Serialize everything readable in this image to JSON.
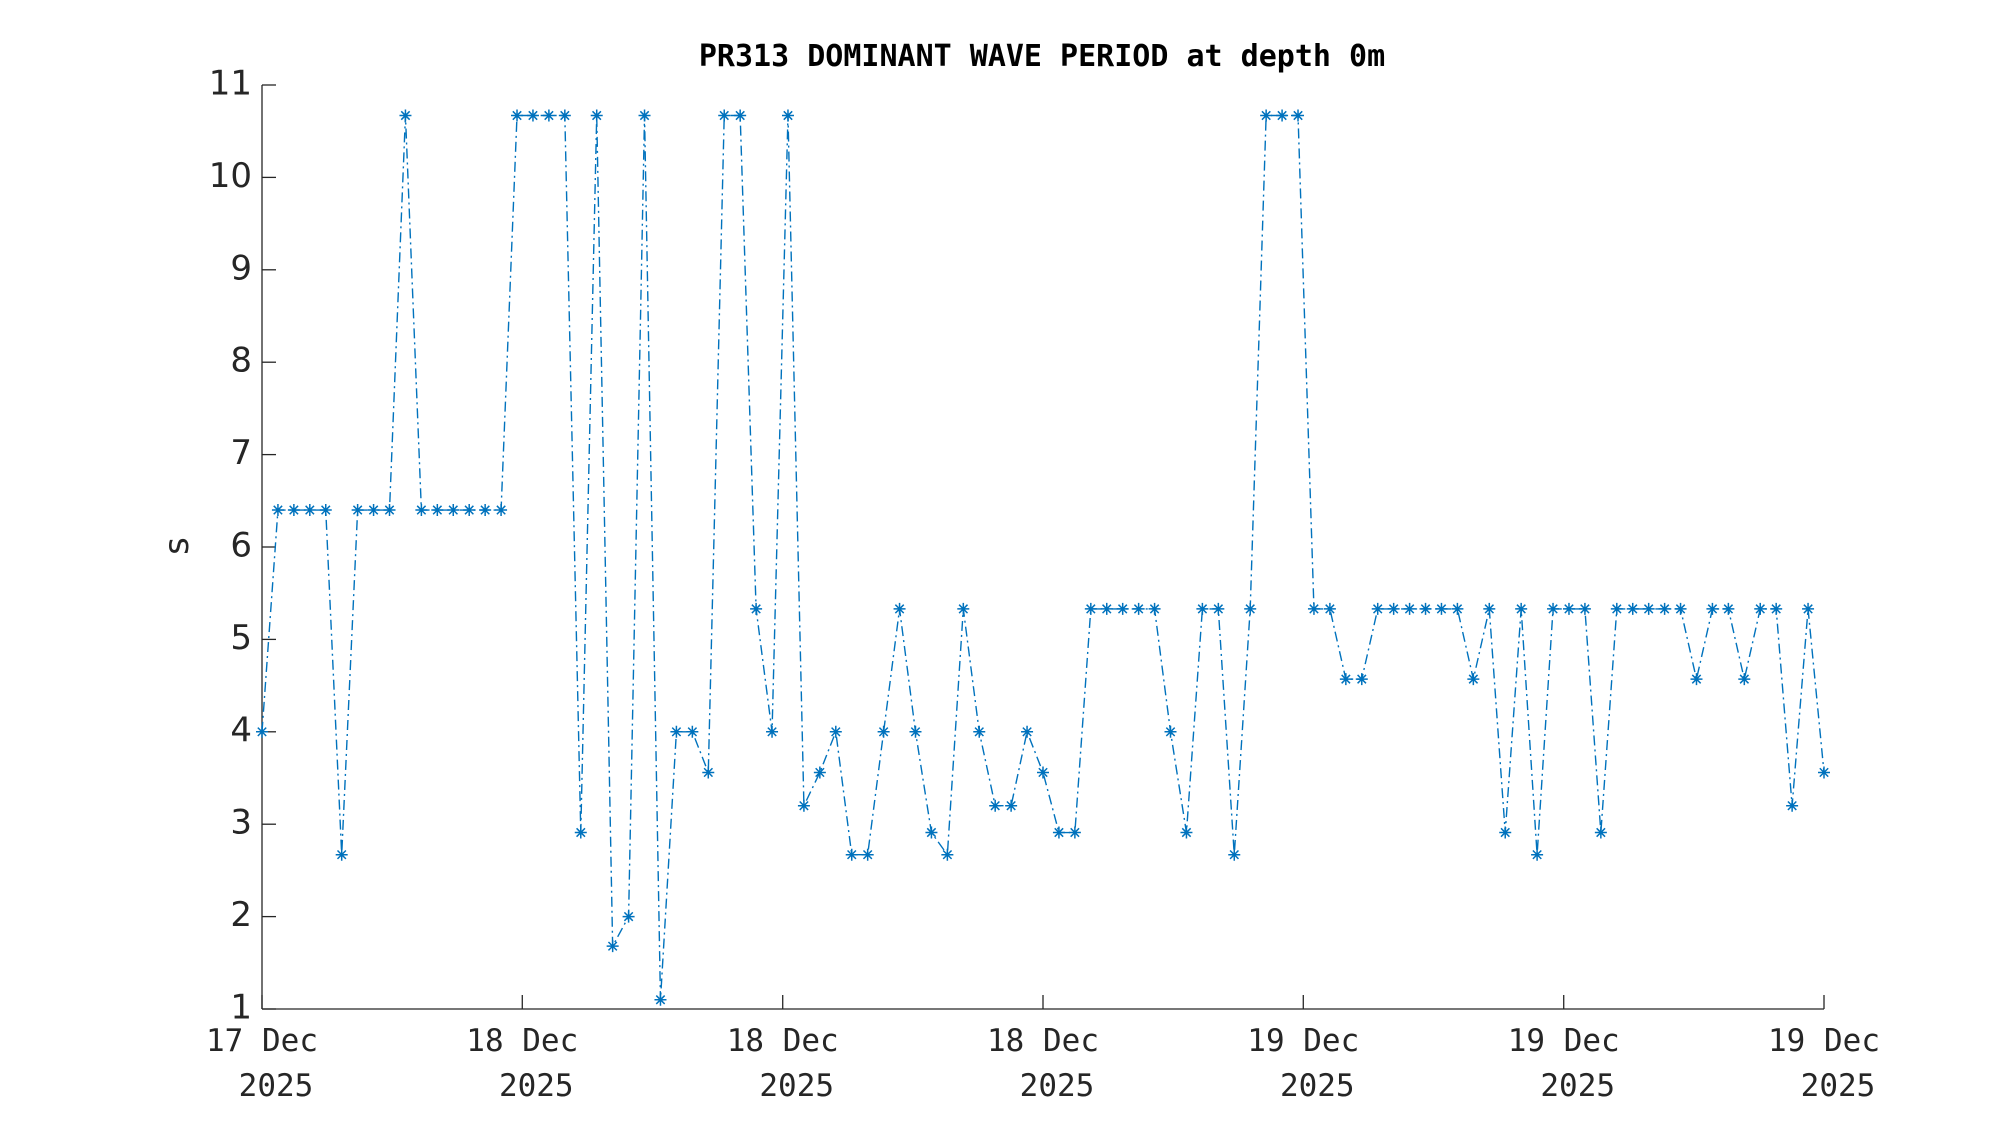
{
  "chart_data": {
    "type": "line",
    "title": "PR313 DOMINANT WAVE PERIOD at depth 0m",
    "ylabel": "s",
    "series": [
      {
        "color": "#0072bd",
        "values": [
          4,
          6.4,
          6.4,
          6.4,
          6.4,
          2.67,
          6.4,
          6.4,
          6.4,
          10.67,
          6.4,
          6.4,
          6.4,
          6.4,
          6.4,
          6.4,
          10.67,
          10.67,
          10.67,
          10.67,
          2.91,
          10.67,
          1.68,
          2,
          10.67,
          1.1,
          4,
          4,
          3.56,
          10.67,
          10.67,
          5.33,
          4,
          10.67,
          3.2,
          3.56,
          4,
          2.67,
          2.67,
          4,
          5.33,
          4,
          2.91,
          2.67,
          5.33,
          4,
          3.2,
          3.2,
          4,
          3.56,
          2.91,
          2.91,
          5.33,
          5.33,
          5.33,
          5.33,
          5.33,
          4,
          2.91,
          5.33,
          5.33,
          2.67,
          5.33,
          10.67,
          10.67,
          10.67,
          5.33,
          5.33,
          4.57,
          4.57,
          5.33,
          5.33,
          5.33,
          5.33,
          5.33,
          5.33,
          4.57,
          5.33,
          2.91,
          5.33,
          2.67,
          5.33,
          5.33,
          5.33,
          2.91,
          5.33,
          5.33,
          5.33,
          5.33,
          5.33,
          4.57,
          5.33,
          5.33,
          4.57,
          5.33,
          5.33,
          3.2,
          5.33,
          3.56
        ]
      }
    ],
    "xlim": [
      0,
      98
    ],
    "xticks": [
      {
        "value": 0,
        "label": "17 Dec\n2025"
      },
      {
        "value": 16.33,
        "label": "18 Dec\n2025"
      },
      {
        "value": 32.67,
        "label": "18 Dec\n2025"
      },
      {
        "value": 49,
        "label": "18 Dec\n2025"
      },
      {
        "value": 65.33,
        "label": "19 Dec\n2025"
      },
      {
        "value": 81.67,
        "label": "19 Dec\n2025"
      },
      {
        "value": 98,
        "label": "19 Dec\n2025"
      }
    ],
    "ylim": [
      1,
      11
    ],
    "yticks": [
      1,
      2,
      3,
      4,
      5,
      6,
      7,
      8,
      9,
      10,
      11
    ]
  }
}
